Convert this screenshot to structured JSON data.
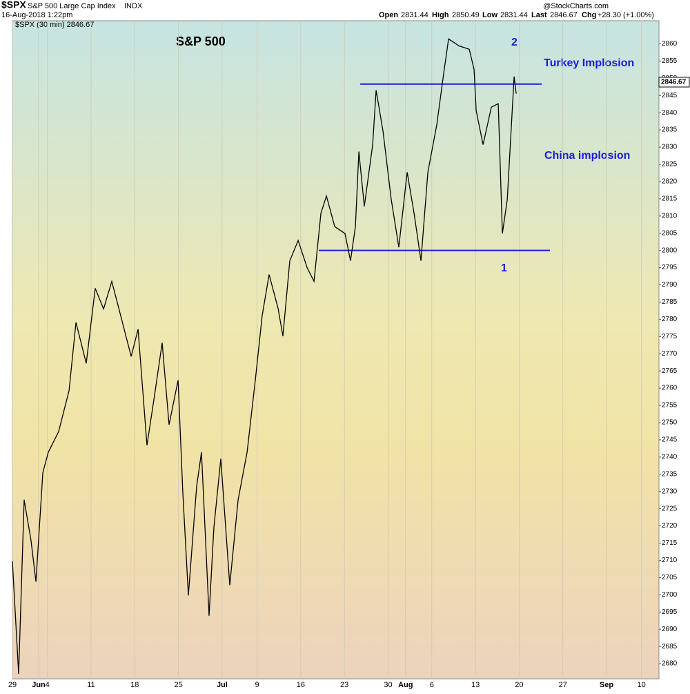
{
  "chart_data": {
    "type": "line",
    "header": {
      "symbol": "$SPX",
      "name": "S&P 500 Large Cap Index",
      "exchange": "INDX",
      "date": "16-Aug-2018 1:22pm",
      "open_label": "Open",
      "open": "2831.44",
      "high_label": "High",
      "high": "2850.49",
      "low_label": "Low",
      "low": "2831.44",
      "last_label": "Last",
      "last": "2846.67",
      "chg_label": "Chg",
      "chg": "+28.30 (+1.00%)",
      "source": "@StockCharts.com"
    },
    "legend_text": "$SPX (30 min) 2846.67",
    "last_tag": "2846.67",
    "title": "S&P 500",
    "annotations": [
      "Turkey Implosion",
      "China implosion",
      "1",
      "2"
    ],
    "series": [
      {
        "name": "$SPX",
        "color": "#000000",
        "x": [
          0,
          0.71,
          1.34,
          2.13,
          2.69,
          3.48,
          4.11,
          5.29,
          6.48,
          7.27,
          8.45,
          9.48,
          10.43,
          11.37,
          12.4,
          13.59,
          14.38,
          15.4,
          16.35,
          17.14,
          17.93,
          18.96,
          19.51,
          20.14,
          21.09,
          21.64,
          22.51,
          23.06,
          23.85,
          24.88,
          25.83,
          26.86,
          27.8,
          28.59,
          29.38,
          30.41,
          30.96,
          31.75,
          32.7,
          33.73,
          34.52,
          35.31,
          35.94,
          36.89,
          38.07,
          38.7,
          39.26,
          39.65,
          40.28,
          41.23,
          41.63,
          42.42,
          43.36,
          44.23,
          45.18,
          45.97,
          46.76,
          47.55,
          48.58,
          49.37,
          49.92,
          51.11,
          52.29,
          52.84,
          53.08,
          53.87,
          54.82,
          55.61,
          56.08,
          56.64,
          57.03,
          57.42,
          57.66
        ],
        "values": [
          2709.7,
          2677,
          2727.6,
          2715.7,
          2703.8,
          2735.5,
          2741.4,
          2747.4,
          2759.3,
          2779.1,
          2767.2,
          2789,
          2783,
          2791,
          2781,
          2769.2,
          2777.1,
          2743.4,
          2759.3,
          2773.2,
          2749.4,
          2762.3,
          2729.5,
          2699.8,
          2731.5,
          2741.4,
          2693.9,
          2719.6,
          2739.5,
          2702.8,
          2727.6,
          2741.4,
          2762.3,
          2781.1,
          2793,
          2783.1,
          2775.1,
          2797,
          2802.9,
          2795,
          2791,
          2810.8,
          2815.8,
          2806.9,
          2804.9,
          2797,
          2806.9,
          2828.7,
          2812.8,
          2830.7,
          2846.5,
          2834.6,
          2814.8,
          2800.9,
          2822.7,
          2810.8,
          2797,
          2822.7,
          2836.6,
          2851.5,
          2861.4,
          2859.4,
          2858.4,
          2852.5,
          2840.6,
          2830.7,
          2841.6,
          2842.6,
          2804.9,
          2814.8,
          2832.6,
          2850.5,
          2845.5
        ]
      }
    ],
    "levels": [
      {
        "value": 2848.3,
        "x": [
          39.81,
          60.58
        ],
        "color": "#1a1adc"
      },
      {
        "value": 2800,
        "x": [
          35.07,
          61.53
        ],
        "color": "#1a1adc"
      }
    ],
    "xlim": [
      0,
      74
    ],
    "xticks": [
      {
        "value": 0,
        "label": "29"
      },
      {
        "value": 3,
        "label": "Jun"
      },
      {
        "value": 4,
        "label": "4"
      },
      {
        "value": 9,
        "label": "11"
      },
      {
        "value": 14,
        "label": "18"
      },
      {
        "value": 19,
        "label": "25"
      },
      {
        "value": 24,
        "label": "Jul"
      },
      {
        "value": 28,
        "label": "9"
      },
      {
        "value": 33,
        "label": "16"
      },
      {
        "value": 38,
        "label": "23"
      },
      {
        "value": 43,
        "label": "30"
      },
      {
        "value": 45,
        "label": "Aug"
      },
      {
        "value": 48,
        "label": "6"
      },
      {
        "value": 53,
        "label": "13"
      },
      {
        "value": 58,
        "label": "20"
      },
      {
        "value": 63,
        "label": "27"
      },
      {
        "value": 68,
        "label": "Sep"
      },
      {
        "value": 72,
        "label": "10"
      }
    ],
    "ylim": [
      2675.6,
      2866.7
    ],
    "yticks": [
      2680,
      2685,
      2690,
      2695,
      2700,
      2705,
      2710,
      2715,
      2720,
      2725,
      2730,
      2735,
      2740,
      2745,
      2750,
      2755,
      2760,
      2765,
      2770,
      2775,
      2780,
      2785,
      2790,
      2795,
      2800,
      2805,
      2810,
      2815,
      2820,
      2825,
      2830,
      2835,
      2840,
      2845,
      2850,
      2855,
      2860
    ],
    "grid": "x"
  }
}
